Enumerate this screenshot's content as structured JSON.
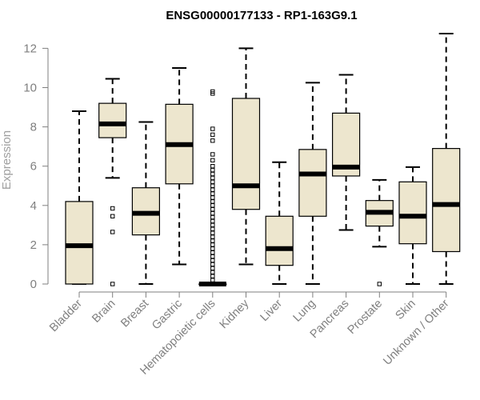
{
  "chart_data": {
    "type": "boxplot",
    "title": "ENSG00000177133 - RP1-163G9.1",
    "ylabel": "Expression",
    "xlabel": "",
    "ylim": [
      0,
      12.6
    ],
    "yticks": [
      0,
      2,
      4,
      6,
      8,
      10,
      12
    ],
    "box_color": "#ede6ce",
    "categories": [
      "Bladder",
      "Brain",
      "Breast",
      "Gastric",
      "Hematopoietic cells",
      "Kidney",
      "Liver",
      "Lung",
      "Pancreas",
      "Prostate",
      "Skin",
      "Unknown / Other"
    ],
    "boxes": [
      {
        "min": 0.0,
        "q1": 0.0,
        "median": 1.95,
        "q3": 4.2,
        "max": 8.8,
        "outliers": []
      },
      {
        "min": 5.4,
        "q1": 7.45,
        "median": 8.15,
        "q3": 9.2,
        "max": 10.45,
        "outliers": [
          3.85,
          3.45,
          2.65,
          0.0
        ]
      },
      {
        "min": 0.0,
        "q1": 2.5,
        "median": 3.6,
        "q3": 4.9,
        "max": 8.25,
        "outliers": []
      },
      {
        "min": 1.0,
        "q1": 5.1,
        "median": 7.1,
        "q3": 9.15,
        "max": 11.0,
        "outliers": []
      },
      {
        "min": 0.0,
        "q1": 0.0,
        "median": 0.0,
        "q3": 0.0,
        "max": 0.0,
        "outliers": [
          9.8,
          9.7,
          7.9,
          7.6,
          7.3,
          6.6,
          6.3,
          6.0,
          5.8,
          5.6,
          5.4,
          5.2,
          5.0,
          4.8,
          4.6,
          4.4,
          4.2,
          4.0,
          3.8,
          3.6,
          3.4,
          3.2,
          3.0,
          2.8,
          2.6,
          2.4,
          2.2,
          2.0,
          1.8,
          1.6,
          1.4,
          1.2,
          1.0,
          0.8,
          0.6,
          0.4,
          0.2
        ]
      },
      {
        "min": 1.0,
        "q1": 3.8,
        "median": 5.0,
        "q3": 9.45,
        "max": 12.0,
        "outliers": []
      },
      {
        "min": 0.0,
        "q1": 0.95,
        "median": 1.8,
        "q3": 3.45,
        "max": 6.2,
        "outliers": []
      },
      {
        "min": 0.0,
        "q1": 3.45,
        "median": 5.6,
        "q3": 6.85,
        "max": 10.25,
        "outliers": []
      },
      {
        "min": 2.75,
        "q1": 5.5,
        "median": 5.95,
        "q3": 8.7,
        "max": 10.65,
        "outliers": []
      },
      {
        "min": 1.9,
        "q1": 2.95,
        "median": 3.65,
        "q3": 4.25,
        "max": 5.3,
        "outliers": [
          0.0
        ]
      },
      {
        "min": 0.0,
        "q1": 2.05,
        "median": 3.45,
        "q3": 5.2,
        "max": 5.95,
        "outliers": []
      },
      {
        "min": 0.0,
        "q1": 1.65,
        "median": 4.05,
        "q3": 6.9,
        "max": 12.75,
        "outliers": []
      }
    ]
  }
}
